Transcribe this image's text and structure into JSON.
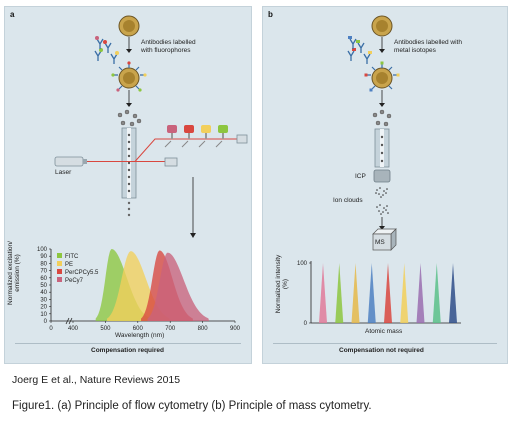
{
  "panel_a": {
    "letter": "a",
    "antibody_label_1": "Antibodies labelled",
    "antibody_label_2": "with fluorophores",
    "laser_label": "Laser",
    "footer": "Compensation required"
  },
  "panel_b": {
    "letter": "b",
    "antibody_label_1": "Antibodies labelled with",
    "antibody_label_2": "metal isotopes",
    "icp_label": "ICP",
    "ion_clouds_label": "Ion clouds",
    "ms_label": "MS",
    "footer": "Compensation not required"
  },
  "chart_data": [
    {
      "type": "area",
      "xlabel": "Wavelength (nm)",
      "ylabel": "Normalized excitation/ emission (%)",
      "xlim": [
        0,
        900
      ],
      "ylim": [
        0,
        100
      ],
      "x_axis_break": [
        0,
        400
      ],
      "xticks": [
        0,
        400,
        500,
        600,
        700,
        800,
        900
      ],
      "yticks": [
        0,
        10,
        20,
        30,
        40,
        50,
        60,
        70,
        80,
        90,
        100
      ],
      "legend_position": "top-left",
      "series": [
        {
          "name": "FITC",
          "color": "#8dc63f",
          "peak_x": 519,
          "peak_y": 100,
          "range": [
            470,
            640
          ]
        },
        {
          "name": "PE",
          "color": "#f2cf5b",
          "peak_x": 578,
          "peak_y": 97,
          "range": [
            505,
            700
          ]
        },
        {
          "name": "PerCPCy5.5",
          "color": "#d9473f",
          "peak_x": 667,
          "peak_y": 98,
          "range": [
            610,
            770
          ]
        },
        {
          "name": "PeCy7",
          "color": "#c9637c",
          "peak_x": 692,
          "peak_y": 95,
          "range": [
            630,
            820
          ]
        }
      ]
    },
    {
      "type": "bar",
      "xlabel": "Atomic mass",
      "ylabel": "Normalized intensity (%)",
      "ylim": [
        0,
        100
      ],
      "yticks": [
        0,
        100
      ],
      "peaks": [
        {
          "color": "#e07a9a",
          "value": 100
        },
        {
          "color": "#8dc63f",
          "value": 100
        },
        {
          "color": "#e5b94a",
          "value": 100
        },
        {
          "color": "#4d80c2",
          "value": 100
        },
        {
          "color": "#d9473f",
          "value": 100
        },
        {
          "color": "#f2cf5b",
          "value": 100
        },
        {
          "color": "#9a6db0",
          "value": 100
        },
        {
          "color": "#5bbf8a",
          "value": 100
        },
        {
          "color": "#2f4e8a",
          "value": 100
        }
      ]
    }
  ],
  "citation": "Joerg E et al., Nature Reviews 2015",
  "caption": "Figure1. (a) Principle of flow cytometry (b) Principle of mass cytometry."
}
